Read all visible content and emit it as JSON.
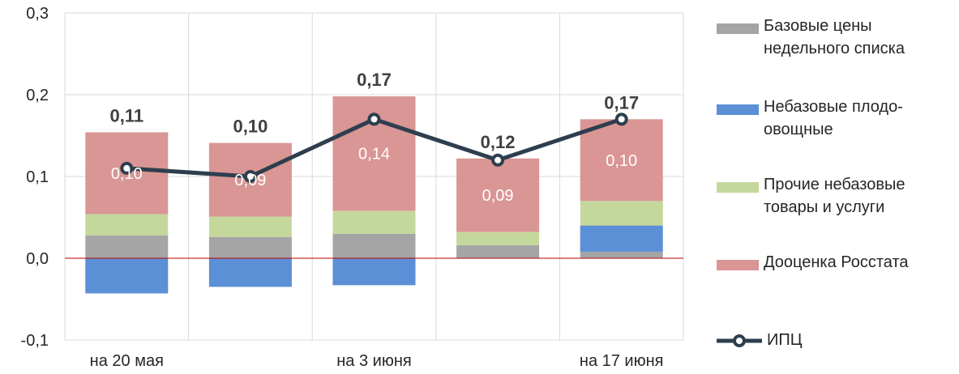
{
  "chart_data": {
    "type": "bar",
    "stacked": true,
    "categories": [
      "на 20 мая",
      "",
      "на 3 июня",
      "",
      "на 17 июня"
    ],
    "ylim": [
      -0.1,
      0.3
    ],
    "yticks": [
      "-0,1",
      "0,0",
      "0,1",
      "0,2",
      "0,3"
    ],
    "yticks_values": [
      -0.1,
      0.0,
      0.1,
      0.2,
      0.3
    ],
    "grid": true,
    "legend_position": "right",
    "series": [
      {
        "name": "Базовые цены недельного списка",
        "kind": "bar",
        "color": "#a5a5a5",
        "values": [
          0.028,
          0.026,
          0.03,
          0.016,
          0.008
        ]
      },
      {
        "name": "Небазовые плодо-овощные",
        "kind": "bar",
        "color": "#5b8fd6",
        "values": [
          -0.043,
          -0.035,
          -0.033,
          0.0,
          0.032
        ]
      },
      {
        "name": "Прочие небазовые товары и услуги",
        "kind": "bar",
        "color": "#c5d89c",
        "values": [
          0.026,
          0.025,
          0.028,
          0.016,
          0.03
        ]
      },
      {
        "name": "Дооценка Росстата",
        "kind": "bar",
        "color": "#d99694",
        "values": [
          0.1,
          0.09,
          0.14,
          0.09,
          0.1
        ],
        "labels": [
          "0,10",
          "0,09",
          "0,14",
          "0,09",
          "0,10"
        ]
      },
      {
        "name": "ИПЦ",
        "kind": "line",
        "color": "#2e3e4e",
        "values": [
          0.11,
          0.1,
          0.17,
          0.12,
          0.17
        ],
        "labels": [
          "0,11",
          "0,10",
          "0,17",
          "0,12",
          "0,17"
        ]
      }
    ]
  },
  "legend": {
    "items": [
      {
        "label": "Базовые цены недельного списка",
        "color": "#a5a5a5",
        "type": "bar"
      },
      {
        "label": "Небазовые плодо-овощные",
        "color": "#5b8fd6",
        "type": "bar"
      },
      {
        "label": "Прочие небазовые товары и услуги",
        "color": "#c5d89c",
        "type": "bar"
      },
      {
        "label": "Дооценка Росстата",
        "color": "#d99694",
        "type": "bar"
      },
      {
        "label": "ИПЦ",
        "color": "#2e3e4e",
        "type": "line"
      }
    ]
  }
}
